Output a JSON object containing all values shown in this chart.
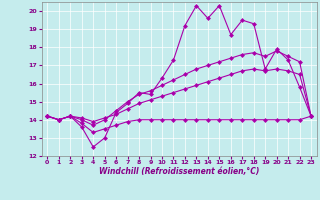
{
  "xlabel": "Windchill (Refroidissement éolien,°C)",
  "background_color": "#c5eced",
  "line_color": "#aa00aa",
  "xlim": [
    -0.5,
    23.5
  ],
  "ylim": [
    12,
    20.5
  ],
  "yticks": [
    12,
    13,
    14,
    15,
    16,
    17,
    18,
    19,
    20
  ],
  "xticks": [
    0,
    1,
    2,
    3,
    4,
    5,
    6,
    7,
    8,
    9,
    10,
    11,
    12,
    13,
    14,
    15,
    16,
    17,
    18,
    19,
    20,
    21,
    22,
    23
  ],
  "x": [
    0,
    1,
    2,
    3,
    4,
    5,
    6,
    7,
    8,
    9,
    10,
    11,
    12,
    13,
    14,
    15,
    16,
    17,
    18,
    19,
    20,
    21,
    22,
    23
  ],
  "line1": [
    14.2,
    14.0,
    14.2,
    13.6,
    12.5,
    13.0,
    14.4,
    14.9,
    15.5,
    15.4,
    16.3,
    17.3,
    19.2,
    20.3,
    19.6,
    20.3,
    18.7,
    19.5,
    19.3,
    16.8,
    17.9,
    17.3,
    15.8,
    14.2
  ],
  "line2": [
    14.2,
    14.0,
    14.2,
    14.0,
    13.7,
    14.0,
    14.5,
    15.0,
    15.4,
    15.6,
    15.9,
    16.2,
    16.5,
    16.8,
    17.0,
    17.2,
    17.4,
    17.6,
    17.7,
    17.5,
    17.8,
    17.5,
    17.2,
    14.2
  ],
  "line3": [
    14.2,
    14.0,
    14.2,
    14.1,
    13.9,
    14.1,
    14.3,
    14.6,
    14.9,
    15.1,
    15.3,
    15.5,
    15.7,
    15.9,
    16.1,
    16.3,
    16.5,
    16.7,
    16.8,
    16.7,
    16.8,
    16.7,
    16.5,
    14.2
  ],
  "line4": [
    14.2,
    14.0,
    14.2,
    13.8,
    13.3,
    13.5,
    13.7,
    13.9,
    14.0,
    14.0,
    14.0,
    14.0,
    14.0,
    14.0,
    14.0,
    14.0,
    14.0,
    14.0,
    14.0,
    14.0,
    14.0,
    14.0,
    14.0,
    14.2
  ],
  "marker": "D",
  "markersize": 2.5,
  "linewidth": 0.8
}
